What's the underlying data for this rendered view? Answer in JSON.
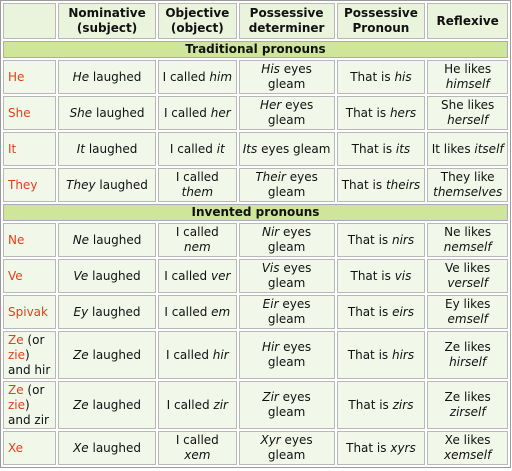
{
  "table": {
    "header": [
      "",
      "Nominative (subject)",
      "Objective (object)",
      "Possessive determiner",
      "Possessive Pronoun",
      "Reflexive"
    ],
    "sections": [
      {
        "title": "Traditional pronouns",
        "rows": [
          {
            "tall": false,
            "cells": [
              [
                {
                  "text": "He",
                  "red": true
                }
              ],
              [
                {
                  "text": "He",
                  "em": true
                },
                {
                  "text": " laughed"
                }
              ],
              [
                {
                  "text": "I called "
                },
                {
                  "text": "him",
                  "em": true
                }
              ],
              [
                {
                  "text": "His",
                  "em": true
                },
                {
                  "text": " eyes gleam"
                }
              ],
              [
                {
                  "text": "That is "
                },
                {
                  "text": "his",
                  "em": true
                }
              ],
              [
                {
                  "text": "He likes "
                },
                {
                  "text": "himself",
                  "em": true
                }
              ]
            ]
          },
          {
            "tall": false,
            "cells": [
              [
                {
                  "text": "She",
                  "red": true
                }
              ],
              [
                {
                  "text": "She",
                  "em": true
                },
                {
                  "text": " laughed"
                }
              ],
              [
                {
                  "text": "I called "
                },
                {
                  "text": "her",
                  "em": true
                }
              ],
              [
                {
                  "text": "Her",
                  "em": true
                },
                {
                  "text": " eyes gleam"
                }
              ],
              [
                {
                  "text": "That is "
                },
                {
                  "text": "hers",
                  "em": true
                }
              ],
              [
                {
                  "text": "She likes "
                },
                {
                  "text": "herself",
                  "em": true
                }
              ]
            ]
          },
          {
            "tall": false,
            "cells": [
              [
                {
                  "text": "It",
                  "red": true
                }
              ],
              [
                {
                  "text": "It",
                  "em": true
                },
                {
                  "text": " laughed"
                }
              ],
              [
                {
                  "text": "I called "
                },
                {
                  "text": "it",
                  "em": true
                }
              ],
              [
                {
                  "text": "Its",
                  "em": true
                },
                {
                  "text": " eyes gleam"
                }
              ],
              [
                {
                  "text": "That is "
                },
                {
                  "text": "its",
                  "em": true
                }
              ],
              [
                {
                  "text": "It likes "
                },
                {
                  "text": "itself",
                  "em": true
                }
              ]
            ]
          },
          {
            "tall": false,
            "cells": [
              [
                {
                  "text": "They",
                  "red": true
                }
              ],
              [
                {
                  "text": "They",
                  "em": true
                },
                {
                  "text": " laughed"
                }
              ],
              [
                {
                  "text": "I called "
                },
                {
                  "text": "them",
                  "em": true
                }
              ],
              [
                {
                  "text": "Their",
                  "em": true
                },
                {
                  "text": " eyes gleam"
                }
              ],
              [
                {
                  "text": "That is "
                },
                {
                  "text": "theirs",
                  "em": true
                }
              ],
              [
                {
                  "text": "They like "
                },
                {
                  "text": "themselves",
                  "em": true
                }
              ]
            ]
          }
        ]
      },
      {
        "title": "Invented pronouns",
        "rows": [
          {
            "tall": false,
            "cells": [
              [
                {
                  "text": "Ne",
                  "red": true
                }
              ],
              [
                {
                  "text": "Ne",
                  "em": true
                },
                {
                  "text": " laughed"
                }
              ],
              [
                {
                  "text": "I called "
                },
                {
                  "text": "nem",
                  "em": true
                }
              ],
              [
                {
                  "text": "Nir",
                  "em": true
                },
                {
                  "text": " eyes gleam"
                }
              ],
              [
                {
                  "text": "That is "
                },
                {
                  "text": "nirs",
                  "em": true
                }
              ],
              [
                {
                  "text": "Ne likes "
                },
                {
                  "text": "nemself",
                  "em": true
                }
              ]
            ]
          },
          {
            "tall": false,
            "cells": [
              [
                {
                  "text": "Ve",
                  "red": true
                }
              ],
              [
                {
                  "text": "Ve",
                  "em": true
                },
                {
                  "text": " laughed"
                }
              ],
              [
                {
                  "text": "I called "
                },
                {
                  "text": "ver",
                  "em": true
                }
              ],
              [
                {
                  "text": "Vis",
                  "em": true
                },
                {
                  "text": " eyes gleam"
                }
              ],
              [
                {
                  "text": "That is "
                },
                {
                  "text": "vis",
                  "em": true
                }
              ],
              [
                {
                  "text": "Ve likes "
                },
                {
                  "text": "verself",
                  "em": true
                }
              ]
            ]
          },
          {
            "tall": false,
            "cells": [
              [
                {
                  "text": "Spivak",
                  "red": true
                }
              ],
              [
                {
                  "text": "Ey",
                  "em": true
                },
                {
                  "text": " laughed"
                }
              ],
              [
                {
                  "text": "I called "
                },
                {
                  "text": "em",
                  "em": true
                }
              ],
              [
                {
                  "text": "Eir",
                  "em": true
                },
                {
                  "text": " eyes gleam"
                }
              ],
              [
                {
                  "text": "That is "
                },
                {
                  "text": "eirs",
                  "em": true
                }
              ],
              [
                {
                  "text": "Ey likes "
                },
                {
                  "text": "emself",
                  "em": true
                }
              ]
            ]
          },
          {
            "tall": true,
            "cells": [
              [
                {
                  "text": "Ze",
                  "red": true
                },
                {
                  "text": " (or "
                },
                {
                  "text": "zie",
                  "red": true
                },
                {
                  "text": ") and hir"
                }
              ],
              [
                {
                  "text": "Ze",
                  "em": true
                },
                {
                  "text": " laughed"
                }
              ],
              [
                {
                  "text": "I called "
                },
                {
                  "text": "hir",
                  "em": true
                }
              ],
              [
                {
                  "text": "Hir",
                  "em": true
                },
                {
                  "text": " eyes gleam"
                }
              ],
              [
                {
                  "text": "That is "
                },
                {
                  "text": "hirs",
                  "em": true
                }
              ],
              [
                {
                  "text": "Ze likes "
                },
                {
                  "text": "hirself",
                  "em": true
                }
              ]
            ]
          },
          {
            "tall": true,
            "cells": [
              [
                {
                  "text": "Ze",
                  "red": true
                },
                {
                  "text": " (or "
                },
                {
                  "text": "zie",
                  "red": true
                },
                {
                  "text": ") and zir"
                }
              ],
              [
                {
                  "text": "Ze",
                  "em": true
                },
                {
                  "text": " laughed"
                }
              ],
              [
                {
                  "text": "I called "
                },
                {
                  "text": "zir",
                  "em": true
                }
              ],
              [
                {
                  "text": "Zir",
                  "em": true
                },
                {
                  "text": " eyes gleam"
                }
              ],
              [
                {
                  "text": "That is "
                },
                {
                  "text": "zirs",
                  "em": true
                }
              ],
              [
                {
                  "text": "Ze likes "
                },
                {
                  "text": "zirself",
                  "em": true
                }
              ]
            ]
          },
          {
            "tall": false,
            "cells": [
              [
                {
                  "text": "Xe",
                  "red": true
                }
              ],
              [
                {
                  "text": "Xe",
                  "em": true
                },
                {
                  "text": " laughed"
                }
              ],
              [
                {
                  "text": "I called "
                },
                {
                  "text": "xem",
                  "em": true
                }
              ],
              [
                {
                  "text": "Xyr",
                  "em": true
                },
                {
                  "text": " eyes gleam"
                }
              ],
              [
                {
                  "text": "That is "
                },
                {
                  "text": "xyrs",
                  "em": true
                }
              ],
              [
                {
                  "text": "Xe likes "
                },
                {
                  "text": "xemself",
                  "em": true
                }
              ]
            ]
          }
        ]
      }
    ]
  }
}
